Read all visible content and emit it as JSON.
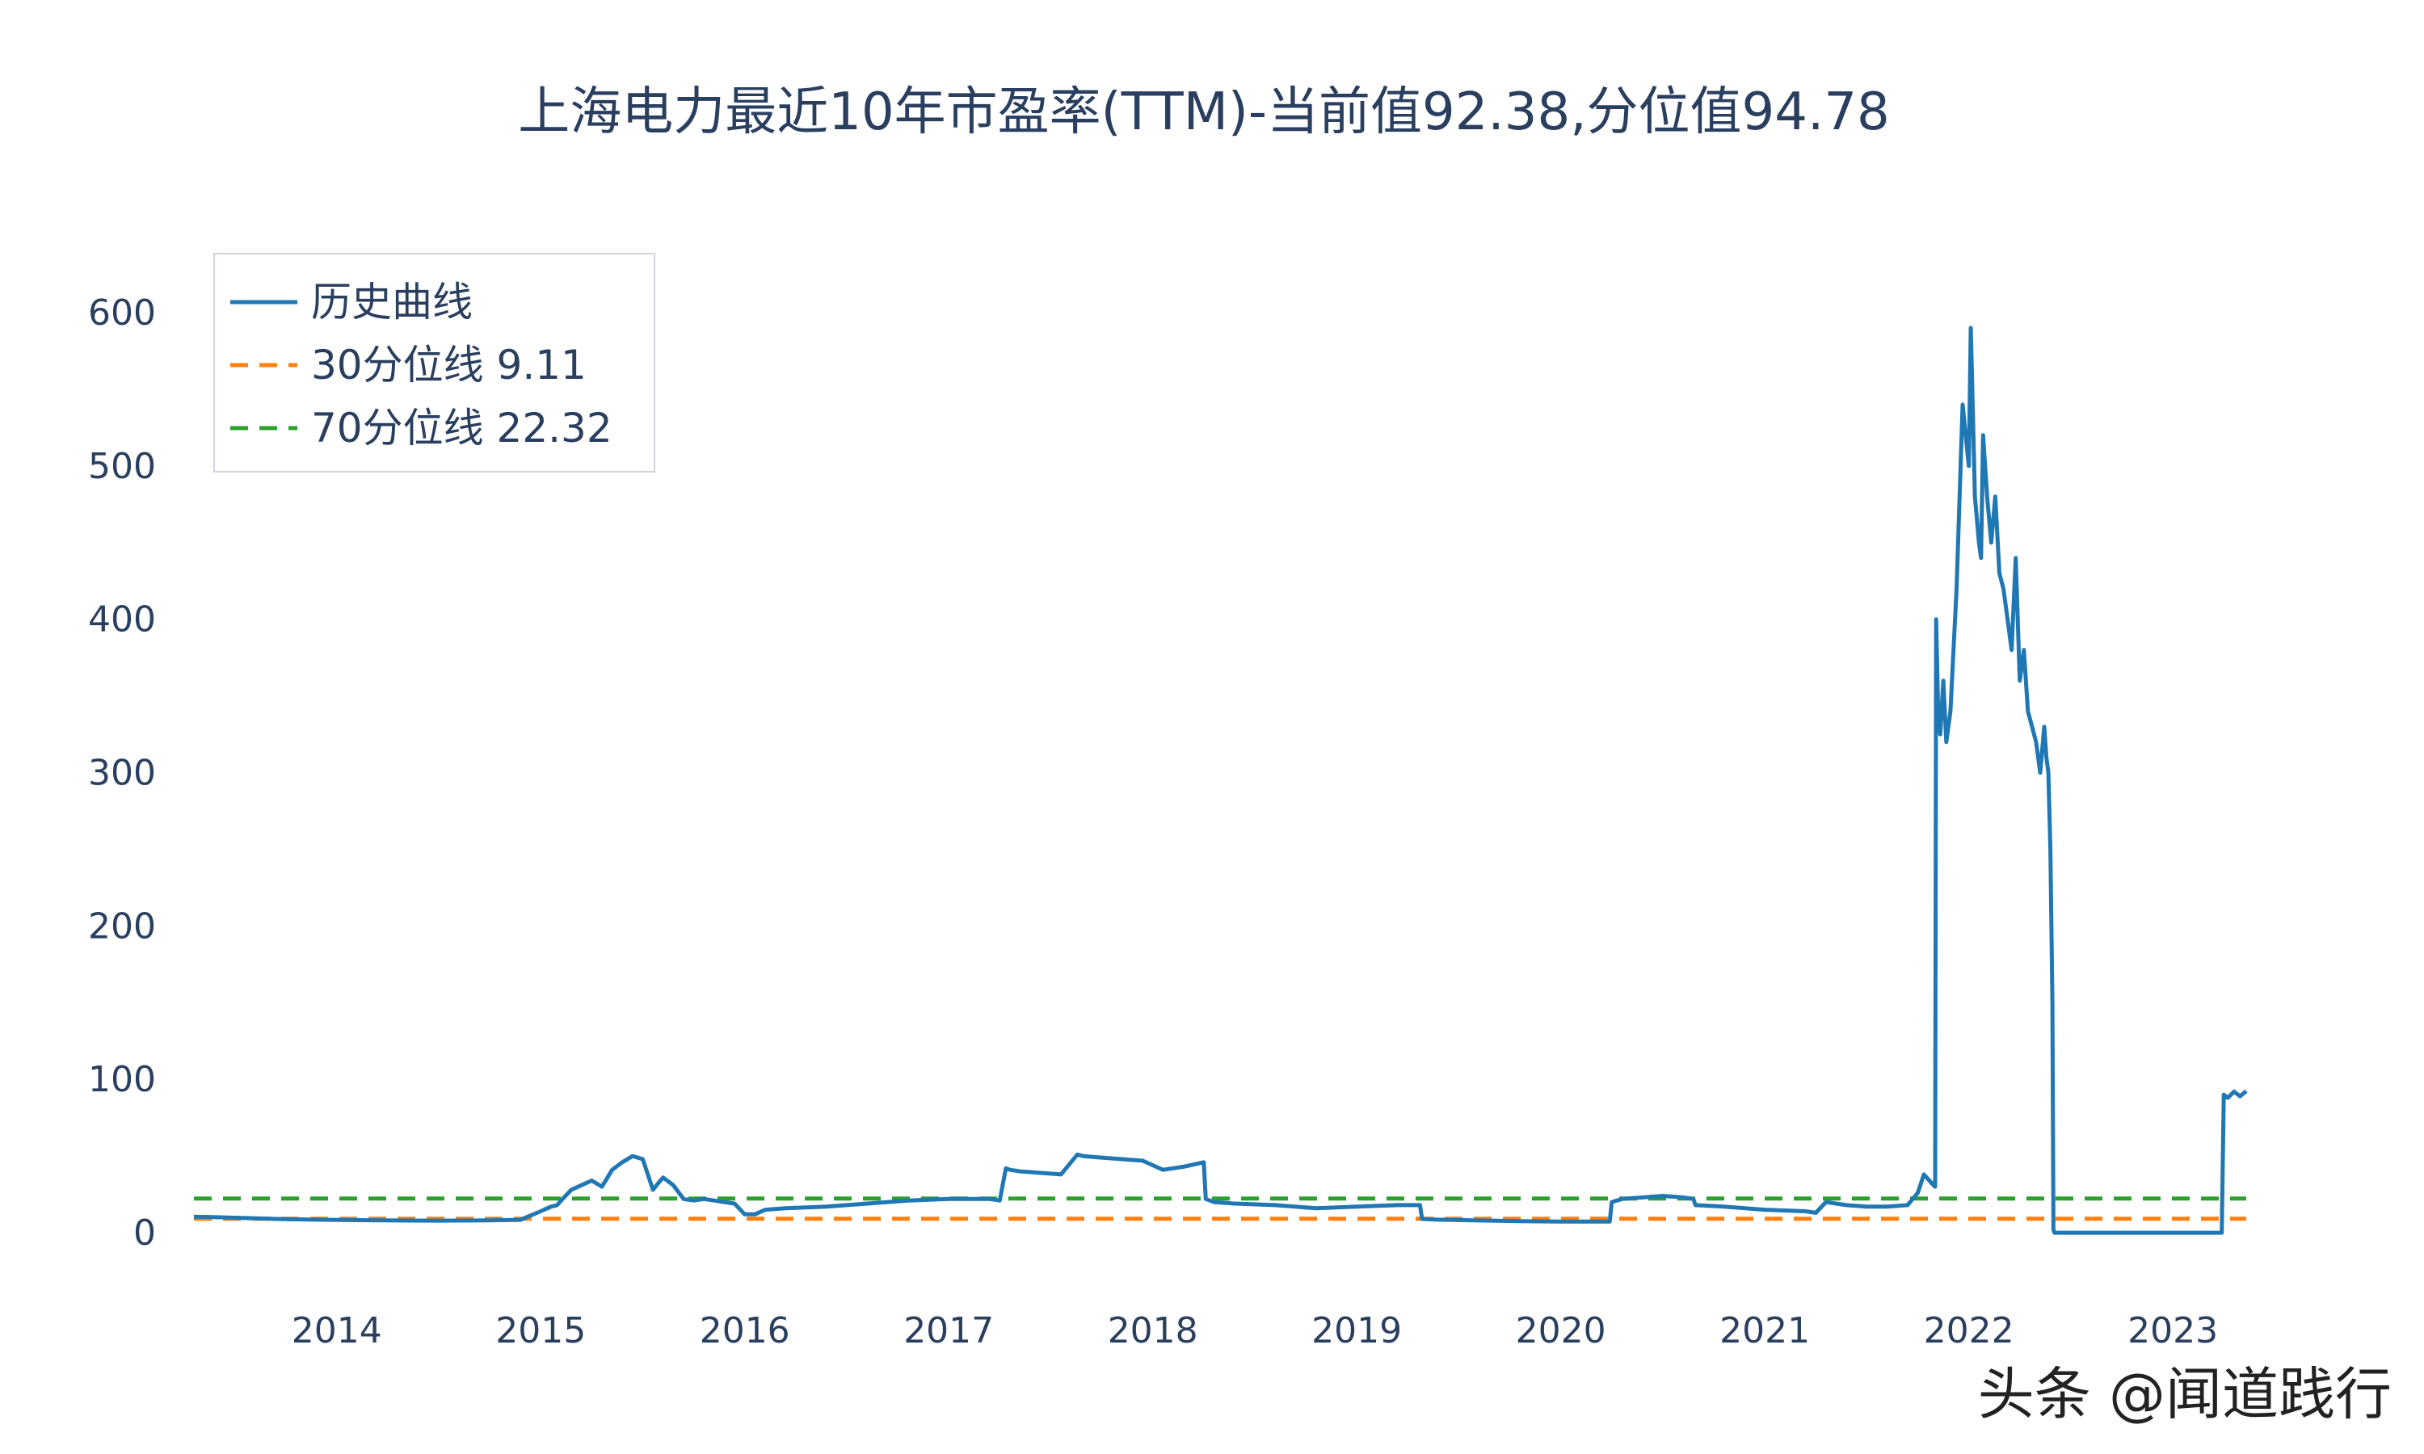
{
  "chart_data": {
    "type": "line",
    "title": "上海电力最近10年市盈率(TTM)-当前值92.38,分位值94.78",
    "xlabel": "",
    "ylabel": "",
    "xlim": [
      2013.3,
      2023.36
    ],
    "ylim": [
      -60,
      630
    ],
    "y_ticks": [
      0,
      100,
      200,
      300,
      400,
      500,
      600
    ],
    "x_ticks": [
      2014,
      2015,
      2016,
      2017,
      2018,
      2019,
      2020,
      2021,
      2022,
      2023
    ],
    "grid": false,
    "legend_position": "top-left",
    "series": [
      {
        "name": "历史曲线",
        "color": "#1f77b4",
        "style": "solid",
        "x": [
          2013.3,
          2013.5,
          2013.7,
          2013.9,
          2014.1,
          2014.3,
          2014.5,
          2014.7,
          2014.9,
          2015.0,
          2015.05,
          2015.08,
          2015.1,
          2015.15,
          2015.2,
          2015.25,
          2015.3,
          2015.35,
          2015.4,
          2015.45,
          2015.5,
          2015.55,
          2015.58,
          2015.6,
          2015.65,
          2015.7,
          2015.75,
          2015.8,
          2015.85,
          2015.9,
          2015.95,
          2016.0,
          2016.05,
          2016.1,
          2016.2,
          2016.4,
          2016.6,
          2016.8,
          2017.0,
          2017.2,
          2017.25,
          2017.28,
          2017.3,
          2017.35,
          2017.45,
          2017.55,
          2017.63,
          2017.66,
          2017.75,
          2017.85,
          2017.95,
          2018.05,
          2018.15,
          2018.25,
          2018.26,
          2018.28,
          2018.3,
          2018.4,
          2018.6,
          2018.8,
          2019.0,
          2019.2,
          2019.31,
          2019.32,
          2019.4,
          2019.6,
          2019.8,
          2020.0,
          2020.2,
          2020.24,
          2020.25,
          2020.3,
          2020.4,
          2020.5,
          2020.6,
          2020.65,
          2020.66,
          2020.8,
          2021.0,
          2021.2,
          2021.25,
          2021.3,
          2021.4,
          2021.5,
          2021.6,
          2021.7,
          2021.75,
          2021.78,
          2021.82,
          2021.835,
          2021.84,
          2021.85,
          2021.86,
          2021.875,
          2021.89,
          2021.91,
          2021.94,
          2021.97,
          2022.0,
          2022.01,
          2022.03,
          2022.05,
          2022.06,
          2022.07,
          2022.09,
          2022.11,
          2022.13,
          2022.15,
          2022.17,
          2022.19,
          2022.21,
          2022.23,
          2022.25,
          2022.27,
          2022.29,
          2022.31,
          2022.33,
          2022.35,
          2022.37,
          2022.38,
          2022.39,
          2022.4,
          2022.41,
          2022.415,
          2022.42,
          2022.6,
          2022.8,
          2023.0,
          2023.2,
          2023.24,
          2023.25,
          2023.27,
          2023.3,
          2023.33,
          2023.36
        ],
        "y": [
          10.5,
          9.8,
          9.0,
          8.5,
          8.2,
          8.0,
          7.9,
          8.0,
          8.4,
          14,
          17,
          18,
          21,
          28,
          31,
          34,
          30,
          41,
          46,
          50,
          48,
          28,
          33,
          36,
          31,
          22,
          21,
          22,
          21,
          20,
          19,
          12,
          12,
          15,
          16,
          17,
          19,
          21,
          22,
          22,
          21,
          42,
          41,
          40,
          39,
          38,
          51,
          50,
          49,
          48,
          47,
          41,
          43,
          46,
          22,
          21,
          20,
          19,
          18,
          16,
          17,
          18,
          18,
          9,
          8.5,
          8,
          7.5,
          7.3,
          7.3,
          7.3,
          20,
          22,
          23,
          24,
          23,
          22,
          18,
          17,
          15,
          14,
          13,
          20,
          18,
          17,
          17,
          18,
          26,
          38,
          32,
          30,
          400,
          340,
          325,
          360,
          320,
          340,
          420,
          540,
          500,
          590,
          480,
          450,
          440,
          520,
          480,
          450,
          480,
          430,
          420,
          400,
          380,
          440,
          360,
          380,
          340,
          330,
          320,
          300,
          330,
          310,
          300,
          250,
          150,
          2,
          0,
          0,
          0,
          0,
          0,
          0,
          90,
          88,
          92,
          89,
          92.38
        ]
      },
      {
        "name": "30分位线 9.11",
        "color": "#ff7f0e",
        "style": "dashed",
        "x": [
          2013.3,
          2023.36
        ],
        "y": [
          9.11,
          9.11
        ]
      },
      {
        "name": "70分位线 22.32",
        "color": "#2ca02c",
        "style": "dashed",
        "x": [
          2013.3,
          2023.36
        ],
        "y": [
          22.32,
          22.32
        ]
      }
    ]
  },
  "watermark": "头条 @闻道践行"
}
